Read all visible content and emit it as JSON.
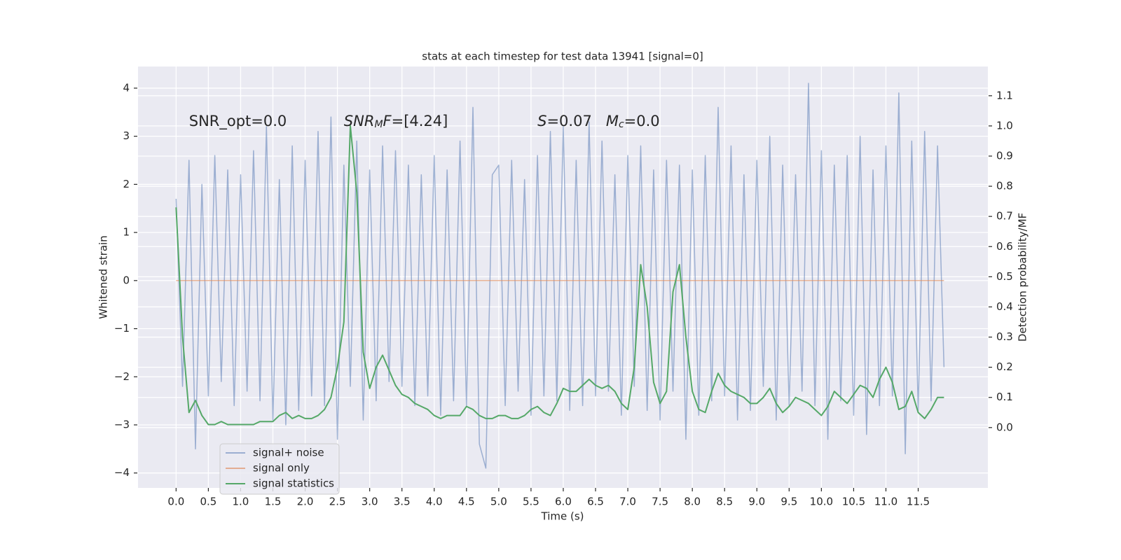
{
  "chart_data": {
    "type": "line",
    "title": "stats at each timestep for test data 13941 [signal=0]",
    "xlabel": "Time (s)",
    "ylabel": "Whitened strain",
    "y2label": "Detection probability/MF",
    "annotations": [
      {
        "x": 0.2,
        "y": 3.3,
        "parts": [
          {
            "text": "SNR_opt=0.0"
          }
        ]
      },
      {
        "x": 2.6,
        "y": 3.3,
        "parts": [
          {
            "text": "SNR",
            "italic": true
          },
          {
            "text": "M",
            "italic": true,
            "sub": true
          },
          {
            "text": "F",
            "italic": true
          },
          {
            "text": "=[4.24]"
          }
        ]
      },
      {
        "x": 5.6,
        "y": 3.3,
        "parts": [
          {
            "text": "S",
            "italic": true
          },
          {
            "text": "=0.07   "
          },
          {
            "text": "M",
            "italic": true
          },
          {
            "text": "c",
            "italic": true,
            "sub": true
          },
          {
            "text": "=0.0"
          }
        ]
      }
    ],
    "x": [
      0.0,
      0.1,
      0.2,
      0.3,
      0.4,
      0.5,
      0.6,
      0.7,
      0.8,
      0.9,
      1.0,
      1.1,
      1.2,
      1.3,
      1.4,
      1.5,
      1.6,
      1.7,
      1.8,
      1.9,
      2.0,
      2.1,
      2.2,
      2.3,
      2.4,
      2.5,
      2.6,
      2.7,
      2.8,
      2.9,
      3.0,
      3.1,
      3.2,
      3.3,
      3.4,
      3.5,
      3.6,
      3.7,
      3.8,
      3.9,
      4.0,
      4.1,
      4.2,
      4.3,
      4.4,
      4.5,
      4.6,
      4.7,
      4.8,
      4.9,
      5.0,
      5.1,
      5.2,
      5.3,
      5.4,
      5.5,
      5.6,
      5.7,
      5.8,
      5.9,
      6.0,
      6.1,
      6.2,
      6.3,
      6.4,
      6.5,
      6.6,
      6.7,
      6.8,
      6.9,
      7.0,
      7.1,
      7.2,
      7.3,
      7.4,
      7.5,
      7.6,
      7.7,
      7.8,
      7.9,
      8.0,
      8.1,
      8.2,
      8.3,
      8.4,
      8.5,
      8.6,
      8.7,
      8.8,
      8.9,
      9.0,
      9.1,
      9.2,
      9.3,
      9.4,
      9.5,
      9.6,
      9.7,
      9.8,
      9.9,
      10.0,
      10.1,
      10.2,
      10.3,
      10.4,
      10.5,
      10.6,
      10.7,
      10.8,
      10.9,
      11.0,
      11.1,
      11.2,
      11.3,
      11.4,
      11.5,
      11.6,
      11.7,
      11.8,
      11.9
    ],
    "series": [
      {
        "name": "signal+ noise",
        "color": "#4c72b0",
        "opacity": 0.5,
        "axis": "y",
        "values": [
          1.7,
          -2.2,
          2.5,
          -3.5,
          2.0,
          -2.4,
          2.6,
          -2.1,
          2.3,
          -2.6,
          2.2,
          -2.3,
          2.7,
          -2.5,
          3.2,
          -2.9,
          2.1,
          -3.0,
          2.8,
          -2.7,
          2.5,
          -2.4,
          3.1,
          -2.6,
          3.4,
          -3.3,
          2.4,
          -2.2,
          2.9,
          -2.9,
          2.3,
          -2.5,
          2.8,
          -2.1,
          2.7,
          -2.2,
          2.4,
          -2.6,
          2.2,
          -2.4,
          2.6,
          -2.8,
          2.3,
          -2.5,
          2.9,
          -2.6,
          3.6,
          -3.4,
          -3.9,
          2.2,
          2.4,
          -2.6,
          2.5,
          -2.3,
          2.1,
          -2.8,
          2.6,
          -2.4,
          3.1,
          -2.5,
          3.2,
          -2.7,
          2.5,
          -2.6,
          3.3,
          -2.4,
          2.9,
          -2.3,
          2.2,
          -2.8,
          2.6,
          -2.2,
          2.8,
          -2.7,
          2.3,
          -2.9,
          2.5,
          -2.3,
          2.4,
          -3.3,
          2.3,
          -2.8,
          2.6,
          -2.5,
          3.6,
          -2.4,
          2.8,
          -2.9,
          2.2,
          -2.7,
          2.5,
          -2.2,
          3.0,
          -2.9,
          2.4,
          -2.6,
          2.2,
          -2.3,
          4.1,
          -2.6,
          2.7,
          -3.3,
          2.4,
          -2.5,
          2.6,
          -2.8,
          3.0,
          -3.2,
          2.3,
          -2.6,
          2.8,
          -2.4,
          3.9,
          -3.6,
          2.9,
          -2.7,
          3.1,
          -2.5,
          2.8,
          -1.8
        ]
      },
      {
        "name": "signal only",
        "color": "#dd8452",
        "opacity": 0.6,
        "axis": "y",
        "values": [
          0,
          0,
          0,
          0,
          0,
          0,
          0,
          0,
          0,
          0,
          0,
          0,
          0,
          0,
          0,
          0,
          0,
          0,
          0,
          0,
          0,
          0,
          0,
          0,
          0,
          0,
          0,
          0,
          0,
          0,
          0,
          0,
          0,
          0,
          0,
          0,
          0,
          0,
          0,
          0,
          0,
          0,
          0,
          0,
          0,
          0,
          0,
          0,
          0,
          0,
          0,
          0,
          0,
          0,
          0,
          0,
          0,
          0,
          0,
          0,
          0,
          0,
          0,
          0,
          0,
          0,
          0,
          0,
          0,
          0,
          0,
          0,
          0,
          0,
          0,
          0,
          0,
          0,
          0,
          0,
          0,
          0,
          0,
          0,
          0,
          0,
          0,
          0,
          0,
          0,
          0,
          0,
          0,
          0,
          0,
          0,
          0,
          0,
          0,
          0,
          0,
          0,
          0,
          0,
          0,
          0,
          0,
          0,
          0,
          0,
          0,
          0,
          0,
          0,
          0,
          0,
          0,
          0,
          0,
          0
        ]
      },
      {
        "name": "signal statistics",
        "color": "#55a868",
        "opacity": 1,
        "axis": "y2",
        "values": [
          0.73,
          0.3,
          0.05,
          0.09,
          0.04,
          0.01,
          0.01,
          0.02,
          0.01,
          0.01,
          0.01,
          0.01,
          0.01,
          0.02,
          0.02,
          0.02,
          0.04,
          0.05,
          0.03,
          0.04,
          0.03,
          0.03,
          0.04,
          0.06,
          0.1,
          0.2,
          0.35,
          1.0,
          0.78,
          0.25,
          0.13,
          0.2,
          0.24,
          0.19,
          0.14,
          0.11,
          0.1,
          0.08,
          0.07,
          0.06,
          0.04,
          0.03,
          0.04,
          0.04,
          0.04,
          0.07,
          0.06,
          0.04,
          0.03,
          0.03,
          0.04,
          0.04,
          0.03,
          0.03,
          0.04,
          0.06,
          0.07,
          0.05,
          0.04,
          0.08,
          0.13,
          0.12,
          0.12,
          0.14,
          0.16,
          0.14,
          0.13,
          0.14,
          0.12,
          0.08,
          0.06,
          0.2,
          0.54,
          0.4,
          0.15,
          0.08,
          0.12,
          0.45,
          0.54,
          0.3,
          0.12,
          0.06,
          0.05,
          0.12,
          0.18,
          0.14,
          0.12,
          0.11,
          0.1,
          0.08,
          0.08,
          0.1,
          0.13,
          0.08,
          0.05,
          0.07,
          0.1,
          0.09,
          0.08,
          0.06,
          0.04,
          0.07,
          0.12,
          0.1,
          0.08,
          0.11,
          0.14,
          0.13,
          0.1,
          0.16,
          0.2,
          0.15,
          0.06,
          0.07,
          0.12,
          0.05,
          0.03,
          0.06,
          0.1,
          0.1
        ]
      }
    ],
    "xlim": [
      -0.59,
      12.58
    ],
    "ylim": [
      -4.31,
      4.45
    ],
    "y2lim": [
      -0.2,
      1.197
    ],
    "xticks": [
      {
        "value": 0,
        "label": "0.0"
      },
      0.5,
      {
        "value": 1,
        "label": "1.0"
      },
      1.5,
      {
        "value": 2,
        "label": "2.0"
      },
      2.5,
      {
        "value": 3,
        "label": "3.0"
      },
      3.5,
      {
        "value": 4,
        "label": "4.0"
      },
      4.5,
      {
        "value": 5,
        "label": "5.0"
      },
      5.5,
      {
        "value": 6,
        "label": "6.0"
      },
      6.5,
      {
        "value": 7,
        "label": "7.0"
      },
      7.5,
      {
        "value": 8,
        "label": "8.0"
      },
      8.5,
      {
        "value": 9,
        "label": "9.0"
      },
      9.5,
      {
        "value": 10,
        "label": "10.0"
      },
      10.5,
      {
        "value": 11,
        "label": "11.0"
      },
      11.5
    ],
    "yticks": [
      {
        "value": -4,
        "label": "−4"
      },
      {
        "value": -3,
        "label": "−3"
      },
      {
        "value": -2,
        "label": "−2"
      },
      {
        "value": -1,
        "label": "−1"
      },
      0,
      1,
      2,
      3,
      4
    ],
    "y2ticks": [
      {
        "value": 0,
        "label": "0.0"
      },
      0.1,
      0.2,
      0.3,
      0.4,
      0.5,
      0.6,
      0.7,
      0.8,
      0.9,
      {
        "value": 1,
        "label": "1.0"
      },
      1.1
    ],
    "grid": true,
    "background": "#eaeaf2",
    "legend": "lower left"
  }
}
